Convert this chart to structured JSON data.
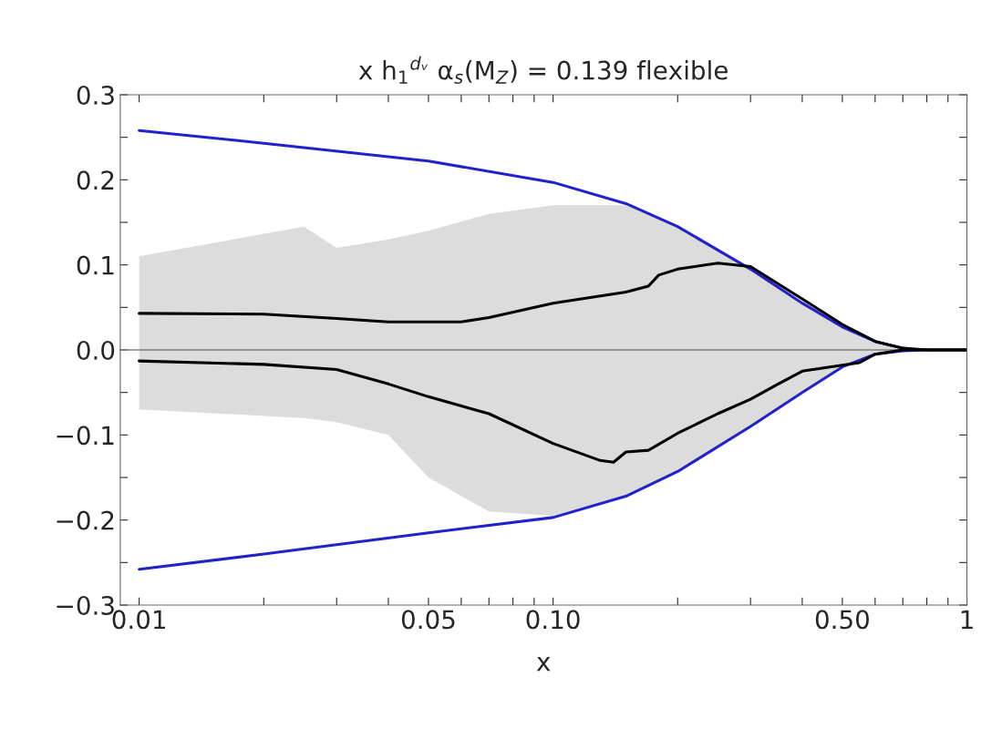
{
  "chart_data": {
    "type": "line",
    "title": "x h$_{1}$$^{dᵥ}$ α$_{s}$(M$_{Z}$) = 0.139 flexible",
    "xlabel": "x",
    "log": "x",
    "grid": false,
    "legend": false,
    "marker": "none",
    "line_style": "solid",
    "xlim": [
      0.009,
      1
    ],
    "ylim": [
      -0.3,
      0.3
    ],
    "xticks": [
      {
        "value": 0.01,
        "label": "0.01"
      },
      {
        "value": 0.02,
        "label": null
      },
      {
        "value": 0.03,
        "label": null
      },
      {
        "value": 0.04,
        "label": null
      },
      {
        "value": 0.05,
        "label": "0.05"
      },
      {
        "value": 0.06,
        "label": null
      },
      {
        "value": 0.07,
        "label": null
      },
      {
        "value": 0.08,
        "label": null
      },
      {
        "value": 0.09,
        "label": null
      },
      {
        "value": 0.1,
        "label": "0.10"
      },
      {
        "value": 0.2,
        "label": null
      },
      {
        "value": 0.3,
        "label": null
      },
      {
        "value": 0.4,
        "label": null
      },
      {
        "value": 0.5,
        "label": "0.50"
      },
      {
        "value": 0.6,
        "label": null
      },
      {
        "value": 0.7,
        "label": null
      },
      {
        "value": 0.8,
        "label": null
      },
      {
        "value": 0.9,
        "label": null
      },
      1
    ],
    "yticks": [
      {
        "value": -0.3,
        "label": "−0.3"
      },
      {
        "value": -0.25,
        "label": null
      },
      {
        "value": -0.2,
        "label": "−0.2"
      },
      {
        "value": -0.15,
        "label": null
      },
      {
        "value": -0.1,
        "label": "−0.1"
      },
      {
        "value": -0.05,
        "label": null
      },
      {
        "value": 0,
        "label": "0.0"
      },
      {
        "value": 0.05,
        "label": null
      },
      0.1,
      {
        "value": 0.15,
        "label": null
      },
      0.2,
      {
        "value": 0.25,
        "label": null
      },
      0.3
    ],
    "ref_lines": [
      {
        "axis": "y",
        "value": 0,
        "color": "#808080"
      }
    ],
    "series": [
      {
        "type": "area",
        "color": "#d3d3d3",
        "x": [
          0.01,
          0.025,
          0.03,
          0.04,
          0.05,
          0.07,
          0.1,
          0.15,
          0.2,
          0.3,
          0.4,
          0.5,
          0.6,
          0.8,
          1
        ],
        "values": [
          null,
          null,
          null,
          null,
          null,
          null,
          null,
          null,
          null,
          null,
          null,
          null,
          null,
          null,
          null
        ],
        "lower": [
          -0.07,
          -0.08,
          -0.085,
          -0.1,
          -0.15,
          -0.19,
          -0.195,
          -0.172,
          -0.143,
          -0.09,
          -0.05,
          -0.02,
          -0.005,
          0,
          0
        ],
        "upper": [
          0.11,
          0.145,
          0.12,
          0.13,
          0.14,
          0.16,
          0.17,
          0.17,
          0.145,
          0.095,
          0.055,
          0.027,
          0.01,
          0,
          0
        ]
      },
      {
        "color": "#2222cc",
        "x": [
          0.01,
          0.02,
          0.05,
          0.1,
          0.15,
          0.2,
          0.3,
          0.4,
          0.5,
          0.6,
          0.7
        ],
        "values": [
          0.258,
          0.243,
          0.222,
          0.197,
          0.172,
          0.145,
          0.095,
          0.055,
          0.027,
          0.01,
          0.002
        ]
      },
      {
        "color": "#2222cc",
        "x": [
          0.01,
          0.02,
          0.05,
          0.1,
          0.15,
          0.2,
          0.3,
          0.4,
          0.5,
          0.6,
          0.7,
          0.8,
          1
        ],
        "values": [
          -0.258,
          -0.24,
          -0.215,
          -0.197,
          -0.172,
          -0.143,
          -0.09,
          -0.05,
          -0.02,
          -0.005,
          -0.001,
          0,
          0
        ]
      },
      {
        "color": "#000000",
        "x": [
          0.01,
          0.02,
          0.03,
          0.04,
          0.06,
          0.07,
          0.1,
          0.15,
          0.17,
          0.18,
          0.2,
          0.25,
          0.3,
          0.4,
          0.5,
          0.6,
          0.7,
          0.8,
          1
        ],
        "values": [
          0.043,
          0.042,
          0.037,
          0.033,
          0.033,
          0.038,
          0.055,
          0.068,
          0.075,
          0.088,
          0.095,
          0.102,
          0.098,
          0.06,
          0.03,
          0.01,
          0.002,
          0,
          0
        ]
      },
      {
        "color": "#000000",
        "x": [
          0.01,
          0.02,
          0.03,
          0.04,
          0.05,
          0.07,
          0.1,
          0.13,
          0.14,
          0.15,
          0.17,
          0.2,
          0.25,
          0.3,
          0.35,
          0.4,
          0.5,
          0.55,
          0.6,
          0.7,
          1
        ],
        "values": [
          -0.013,
          -0.017,
          -0.023,
          -0.04,
          -0.055,
          -0.075,
          -0.11,
          -0.13,
          -0.132,
          -0.12,
          -0.118,
          -0.098,
          -0.075,
          -0.058,
          -0.04,
          -0.025,
          -0.018,
          -0.015,
          -0.005,
          0,
          0
        ]
      }
    ]
  }
}
